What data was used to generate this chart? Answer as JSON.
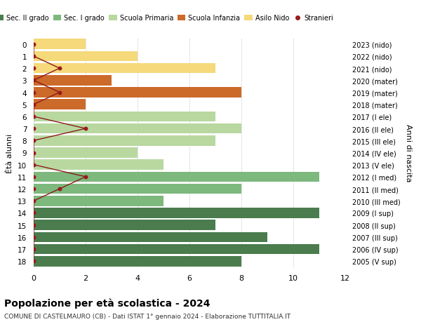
{
  "ages": [
    18,
    17,
    16,
    15,
    14,
    13,
    12,
    11,
    10,
    9,
    8,
    7,
    6,
    5,
    4,
    3,
    2,
    1,
    0
  ],
  "right_labels": [
    "2005 (V sup)",
    "2006 (IV sup)",
    "2007 (III sup)",
    "2008 (II sup)",
    "2009 (I sup)",
    "2010 (III med)",
    "2011 (II med)",
    "2012 (I med)",
    "2013 (V ele)",
    "2014 (IV ele)",
    "2015 (III ele)",
    "2016 (II ele)",
    "2017 (I ele)",
    "2018 (mater)",
    "2019 (mater)",
    "2020 (mater)",
    "2021 (nido)",
    "2022 (nido)",
    "2023 (nido)"
  ],
  "bar_values": [
    8,
    11,
    9,
    7,
    11,
    5,
    8,
    11,
    5,
    4,
    7,
    8,
    7,
    2,
    8,
    3,
    7,
    4,
    2
  ],
  "bar_colors": [
    "#4a7c4e",
    "#4a7c4e",
    "#4a7c4e",
    "#4a7c4e",
    "#4a7c4e",
    "#7db87d",
    "#7db87d",
    "#7db87d",
    "#b8d8a0",
    "#b8d8a0",
    "#b8d8a0",
    "#b8d8a0",
    "#b8d8a0",
    "#cc6a2a",
    "#cc6a2a",
    "#cc6a2a",
    "#f5d97a",
    "#f5d97a",
    "#f5d97a"
  ],
  "stranieri_x": [
    0,
    0,
    0,
    0,
    0,
    0,
    1,
    2,
    0,
    0,
    0,
    2,
    0,
    0,
    1,
    0,
    1,
    0,
    0
  ],
  "legend_labels": [
    "Sec. II grado",
    "Sec. I grado",
    "Scuola Primaria",
    "Scuola Infanzia",
    "Asilo Nido",
    "Stranieri"
  ],
  "legend_colors": [
    "#4a7c4e",
    "#7db87d",
    "#b8d8a0",
    "#cc6a2a",
    "#f5d97a",
    "#9b1a1a"
  ],
  "title": "Popolazione per età scolastica - 2024",
  "subtitle": "COMUNE DI CASTELMAURO (CB) - Dati ISTAT 1° gennaio 2024 - Elaborazione TUTTITALIA.IT",
  "ylabel_left": "Ètà alunni",
  "ylabel_right": "Anni di nascita",
  "xlim": [
    0,
    12
  ],
  "xticks": [
    0,
    2,
    4,
    6,
    8,
    10,
    12
  ],
  "background_color": "#ffffff",
  "grid_color": "#cccccc"
}
